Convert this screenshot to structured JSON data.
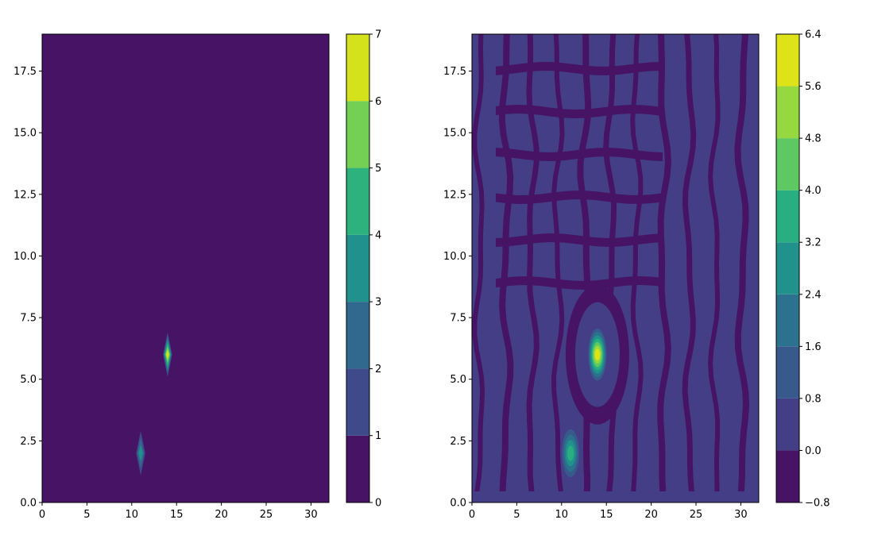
{
  "chart_data": [
    {
      "type": "heatmap",
      "subtype": "filled-contour",
      "title": "",
      "xlabel": "",
      "ylabel": "",
      "xlim": [
        0,
        32
      ],
      "ylim": [
        0,
        19
      ],
      "xticks": [
        "0",
        "5",
        "10",
        "15",
        "20",
        "25",
        "30"
      ],
      "yticks": [
        "0.0",
        "2.5",
        "5.0",
        "7.5",
        "10.0",
        "12.5",
        "15.0",
        "17.5"
      ],
      "levels": [
        0,
        1,
        2,
        3,
        4,
        5,
        6,
        7
      ],
      "colorbar_ticks": [
        "0",
        "1",
        "2",
        "3",
        "4",
        "5",
        "6",
        "7"
      ],
      "colors": [
        "#471365",
        "#3e4a89",
        "#30688e",
        "#20918c",
        "#2db27d",
        "#74d055",
        "#d3e21b"
      ],
      "background_value": 0,
      "peaks": [
        {
          "x": 14,
          "y": 6,
          "value": 7
        },
        {
          "x": 11,
          "y": 2,
          "value": 4
        }
      ]
    },
    {
      "type": "heatmap",
      "subtype": "filled-contour",
      "title": "",
      "xlabel": "",
      "ylabel": "",
      "xlim": [
        0,
        32
      ],
      "ylim": [
        0,
        19
      ],
      "xticks": [
        "0",
        "5",
        "10",
        "15",
        "20",
        "25",
        "30"
      ],
      "yticks": [
        "0.0",
        "2.5",
        "5.0",
        "7.5",
        "10.0",
        "12.5",
        "15.0",
        "17.5"
      ],
      "levels": [
        -0.8,
        0.0,
        0.8,
        1.6,
        2.4,
        3.2,
        4.0,
        4.8,
        5.6,
        6.4
      ],
      "colorbar_ticks": [
        "−0.8",
        "0.0",
        "0.8",
        "1.6",
        "2.4",
        "3.2",
        "4.0",
        "4.8",
        "5.6",
        "6.4"
      ],
      "colors": [
        "#471365",
        "#433e85",
        "#38598c",
        "#2c718e",
        "#21918c",
        "#28ae80",
        "#5ec962",
        "#95d840",
        "#dde318"
      ],
      "background_pattern": "ringing artifacts alternating between the two lowest levels",
      "peaks": [
        {
          "x": 14,
          "y": 6,
          "value": 6.4
        },
        {
          "x": 11,
          "y": 2,
          "value": 3.5
        }
      ]
    }
  ]
}
